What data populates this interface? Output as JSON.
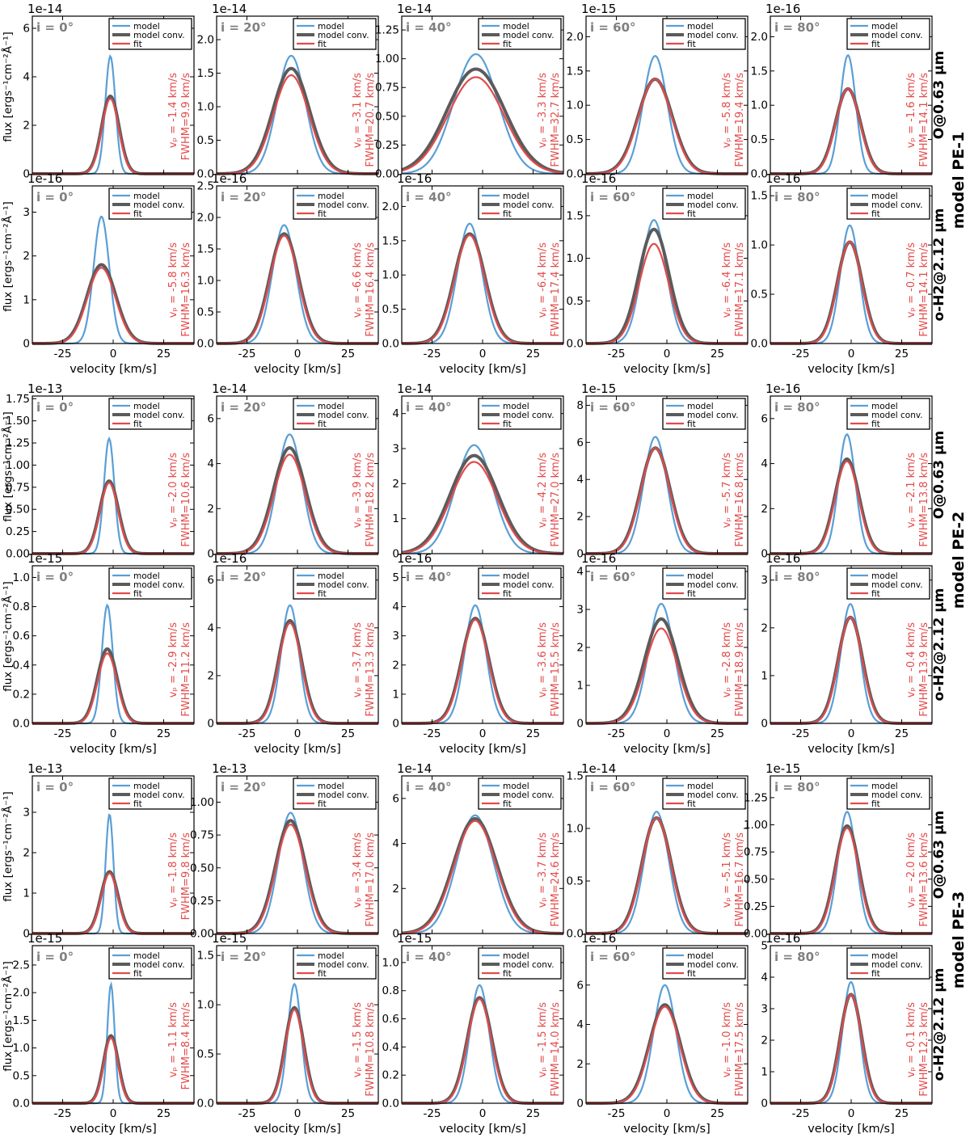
{
  "figure": {
    "x_label": "velocity [km/s]",
    "y_label": "flux [ergs⁻¹cm⁻²Å⁻¹]",
    "legend": [
      "model",
      "model conv.",
      "fit"
    ],
    "colors": {
      "model": "#5a9fd6",
      "model_conv": "#5b5b5b",
      "fit": "#e34a4a",
      "inclination": "#808080"
    }
  },
  "line_labels": [
    "O@0.63 μm",
    "o-H2@2.12 μm"
  ],
  "model_labels": [
    "model PE-1",
    "model PE-2",
    "model PE-3"
  ],
  "inclinations": [
    "i = 0°",
    "i = 20°",
    "i = 40°",
    "i = 60°",
    "i = 80°"
  ],
  "chart_data": [
    {
      "type": "line",
      "model": "model PE-1",
      "line": "O@0.63 μm",
      "inclination": 0,
      "exponent": "1e-14",
      "ylim": [
        0,
        6.5
      ],
      "yticks": [
        0,
        2,
        4,
        6
      ],
      "ytick_decimals": 0,
      "xlim": [
        -40,
        40
      ],
      "xticks": [
        -25,
        0,
        25
      ],
      "vp": -1.4,
      "fwhm": 9.9,
      "peak_model": 4.85,
      "peak_conv": 3.2,
      "peak_fit": 3.1,
      "vp_label": "vₚ = -1.4 km/s",
      "fwhm_label": "FWHM=9.9 km/s"
    },
    {
      "type": "line",
      "model": "model PE-1",
      "line": "O@0.63 μm",
      "inclination": 20,
      "exponent": "1e-14",
      "ylim": [
        0,
        2.35
      ],
      "yticks": [
        0,
        0.5,
        1.0,
        1.5,
        2.0
      ],
      "ytick_decimals": 1,
      "xlim": [
        -40,
        40
      ],
      "xticks": [
        -25,
        0,
        25
      ],
      "vp": -3.1,
      "fwhm": 20.7,
      "peak_model": 1.76,
      "peak_conv": 1.57,
      "peak_fit": 1.47,
      "vp_label": "vₚ = -3.1 km/s",
      "fwhm_label": "FWHM=20.7 km/s"
    },
    {
      "type": "line",
      "model": "model PE-1",
      "line": "O@0.63 μm",
      "inclination": 40,
      "exponent": "1e-14",
      "ylim": [
        0,
        1.37
      ],
      "yticks": [
        0,
        0.25,
        0.5,
        0.75,
        1.0,
        1.25
      ],
      "ytick_decimals": 2,
      "xlim": [
        -40,
        40
      ],
      "xticks": [
        -25,
        0,
        25
      ],
      "vp": -3.3,
      "fwhm": 32.7,
      "peak_model": 1.04,
      "peak_conv": 0.91,
      "peak_fit": 0.84,
      "vp_label": "vₚ = -3.3 km/s",
      "fwhm_label": "FWHM=32.7 km/s"
    },
    {
      "type": "line",
      "model": "model PE-1",
      "line": "O@0.63 μm",
      "inclination": 60,
      "exponent": "1e-15",
      "ylim": [
        0,
        2.3
      ],
      "yticks": [
        0,
        0.5,
        1.0,
        1.5,
        2.0
      ],
      "ytick_decimals": 1,
      "xlim": [
        -40,
        40
      ],
      "xticks": [
        -25,
        0,
        25
      ],
      "vp": -5.8,
      "fwhm": 19.4,
      "peak_model": 1.72,
      "peak_conv": 1.38,
      "peak_fit": 1.38,
      "vp_label": "vₚ = -5.8 km/s",
      "fwhm_label": "FWHM=19.4 km/s"
    },
    {
      "type": "line",
      "model": "model PE-1",
      "line": "O@0.63 μm",
      "inclination": 80,
      "exponent": "1e-16",
      "ylim": [
        0,
        2.3
      ],
      "yticks": [
        0,
        0.5,
        1.0,
        1.5,
        2.0
      ],
      "ytick_decimals": 1,
      "xlim": [
        -40,
        40
      ],
      "xticks": [
        -25,
        0,
        25
      ],
      "vp": -1.6,
      "fwhm": 14.1,
      "peak_model": 1.73,
      "peak_conv": 1.24,
      "peak_fit": 1.24,
      "vp_label": "vₚ = -1.6 km/s",
      "fwhm_label": "FWHM=14.1 km/s"
    },
    {
      "type": "line",
      "model": "model PE-1",
      "line": "o-H2@2.12 μm",
      "inclination": 0,
      "exponent": "1e-16",
      "ylim": [
        0,
        3.6
      ],
      "yticks": [
        0,
        1,
        2,
        3
      ],
      "ytick_decimals": 0,
      "xlim": [
        -40,
        40
      ],
      "xticks": [
        -25,
        0,
        25
      ],
      "vp": -5.8,
      "fwhm": 16.3,
      "peak_model": 2.9,
      "peak_conv": 1.8,
      "peak_fit": 1.73,
      "vp_label": "vₚ = -5.8 km/s",
      "fwhm_label": "FWHM=16.3 km/s"
    },
    {
      "type": "line",
      "model": "model PE-1",
      "line": "o-H2@2.12 μm",
      "inclination": 20,
      "exponent": "1e-16",
      "ylim": [
        0,
        2.5
      ],
      "yticks": [
        0,
        0.5,
        1.0,
        1.5,
        2.0,
        2.5
      ],
      "ytick_decimals": 1,
      "xlim": [
        -40,
        40
      ],
      "xticks": [
        -25,
        0,
        25
      ],
      "vp": -6.6,
      "fwhm": 16.4,
      "peak_model": 1.88,
      "peak_conv": 1.74,
      "peak_fit": 1.71,
      "vp_label": "vₚ = -6.6 km/s",
      "fwhm_label": "FWHM=16.4 km/s"
    },
    {
      "type": "line",
      "model": "model PE-1",
      "line": "o-H2@2.12 μm",
      "inclination": 40,
      "exponent": "1e-16",
      "ylim": [
        0,
        2.3
      ],
      "yticks": [
        0,
        0.5,
        1.0,
        1.5,
        2.0
      ],
      "ytick_decimals": 1,
      "xlim": [
        -40,
        40
      ],
      "xticks": [
        -25,
        0,
        25
      ],
      "vp": -6.4,
      "fwhm": 17.4,
      "peak_model": 1.75,
      "peak_conv": 1.6,
      "peak_fit": 1.58,
      "vp_label": "vₚ = -6.4 km/s",
      "fwhm_label": "FWHM=17.4 km/s"
    },
    {
      "type": "line",
      "model": "model PE-1",
      "line": "o-H2@2.12 μm",
      "inclination": 60,
      "exponent": "1e-16",
      "ylim": [
        0,
        1.85
      ],
      "yticks": [
        0,
        0.5,
        1.0,
        1.5
      ],
      "ytick_decimals": 1,
      "xlim": [
        -40,
        40
      ],
      "xticks": [
        -25,
        0,
        25
      ],
      "vp": -6.4,
      "fwhm": 17.1,
      "peak_model": 1.45,
      "peak_conv": 1.34,
      "peak_fit": 1.17,
      "vp_label": "vₚ = -6.4 km/s",
      "fwhm_label": "FWHM=17.1 km/s"
    },
    {
      "type": "line",
      "model": "model PE-1",
      "line": "o-H2@2.12 μm",
      "inclination": 80,
      "exponent": "1e-16",
      "ylim": [
        0,
        1.6
      ],
      "yticks": [
        0,
        0.5,
        1.0,
        1.5
      ],
      "ytick_decimals": 1,
      "xlim": [
        -40,
        40
      ],
      "xticks": [
        -25,
        0,
        25
      ],
      "vp": -0.7,
      "fwhm": 14.1,
      "peak_model": 1.2,
      "peak_conv": 1.03,
      "peak_fit": 1.03,
      "vp_label": "vₚ = -0.7 km/s",
      "fwhm_label": "FWHM=14.1 km/s"
    },
    {
      "type": "line",
      "model": "model PE-2",
      "line": "O@0.63 μm",
      "inclination": 0,
      "exponent": "1e-13",
      "ylim": [
        0,
        1.78
      ],
      "yticks": [
        0,
        0.25,
        0.5,
        0.75,
        1.0,
        1.25,
        1.5,
        1.75
      ],
      "ytick_decimals": 2,
      "xlim": [
        -40,
        40
      ],
      "xticks": [
        -25,
        0,
        25
      ],
      "vp": -2.0,
      "fwhm": 10.6,
      "peak_model": 1.3,
      "peak_conv": 0.82,
      "peak_fit": 0.8,
      "vp_label": "vₚ = -2.0 km/s",
      "fwhm_label": "FWHM=10.6 km/s"
    },
    {
      "type": "line",
      "model": "model PE-2",
      "line": "O@0.63 μm",
      "inclination": 20,
      "exponent": "1e-14",
      "ylim": [
        0,
        7.0
      ],
      "yticks": [
        0,
        2,
        4,
        6
      ],
      "ytick_decimals": 0,
      "xlim": [
        -40,
        40
      ],
      "xticks": [
        -25,
        0,
        25
      ],
      "vp": -3.9,
      "fwhm": 18.2,
      "peak_model": 5.3,
      "peak_conv": 4.7,
      "peak_fit": 4.4,
      "vp_label": "vₚ = -3.9 km/s",
      "fwhm_label": "FWHM=18.2 km/s"
    },
    {
      "type": "line",
      "model": "model PE-2",
      "line": "O@0.63 μm",
      "inclination": 40,
      "exponent": "1e-14",
      "ylim": [
        0,
        4.5
      ],
      "yticks": [
        0,
        1,
        2,
        3,
        4
      ],
      "ytick_decimals": 0,
      "xlim": [
        -40,
        40
      ],
      "xticks": [
        -25,
        0,
        25
      ],
      "vp": -4.2,
      "fwhm": 27.0,
      "peak_model": 3.1,
      "peak_conv": 2.8,
      "peak_fit": 2.62,
      "vp_label": "vₚ = -4.2 km/s",
      "fwhm_label": "FWHM=27.0 km/s"
    },
    {
      "type": "line",
      "model": "model PE-2",
      "line": "O@0.63 μm",
      "inclination": 60,
      "exponent": "1e-15",
      "ylim": [
        0,
        8.5
      ],
      "yticks": [
        0,
        2,
        4,
        6,
        8
      ],
      "ytick_decimals": 0,
      "xlim": [
        -40,
        40
      ],
      "xticks": [
        -25,
        0,
        25
      ],
      "vp": -5.7,
      "fwhm": 16.8,
      "peak_model": 6.3,
      "peak_conv": 5.7,
      "peak_fit": 5.7,
      "vp_label": "vₚ = -5.7 km/s",
      "fwhm_label": "FWHM=16.8 km/s"
    },
    {
      "type": "line",
      "model": "model PE-2",
      "line": "O@0.63 μm",
      "inclination": 80,
      "exponent": "1e-16",
      "ylim": [
        0,
        7.0
      ],
      "yticks": [
        0,
        2,
        4,
        6
      ],
      "ytick_decimals": 0,
      "xlim": [
        -40,
        40
      ],
      "xticks": [
        -25,
        0,
        25
      ],
      "vp": -2.1,
      "fwhm": 13.8,
      "peak_model": 5.3,
      "peak_conv": 4.2,
      "peak_fit": 4.1,
      "vp_label": "vₚ = -2.1 km/s",
      "fwhm_label": "FWHM=13.8 km/s"
    },
    {
      "type": "line",
      "model": "model PE-2",
      "line": "o-H2@2.12 μm",
      "inclination": 0,
      "exponent": "1e-15",
      "ylim": [
        0,
        1.08
      ],
      "yticks": [
        0,
        0.2,
        0.4,
        0.6,
        0.8,
        1.0
      ],
      "ytick_decimals": 1,
      "xlim": [
        -40,
        40
      ],
      "xticks": [
        -25,
        0,
        25
      ],
      "vp": -2.9,
      "fwhm": 11.2,
      "peak_model": 0.81,
      "peak_conv": 0.51,
      "peak_fit": 0.48,
      "vp_label": "vₚ = -2.9 km/s",
      "fwhm_label": "FWHM=11.2 km/s"
    },
    {
      "type": "line",
      "model": "model PE-2",
      "line": "o-H2@2.12 μm",
      "inclination": 20,
      "exponent": "1e-16",
      "ylim": [
        0,
        6.6
      ],
      "yticks": [
        0,
        2,
        4,
        6
      ],
      "ytick_decimals": 0,
      "xlim": [
        -40,
        40
      ],
      "xticks": [
        -25,
        0,
        25
      ],
      "vp": -3.7,
      "fwhm": 13.3,
      "peak_model": 4.95,
      "peak_conv": 4.3,
      "peak_fit": 4.2,
      "vp_label": "vₚ = -3.7 km/s",
      "fwhm_label": "FWHM=13.3 km/s"
    },
    {
      "type": "line",
      "model": "model PE-2",
      "line": "o-H2@2.12 μm",
      "inclination": 40,
      "exponent": "1e-16",
      "ylim": [
        0,
        5.4
      ],
      "yticks": [
        0,
        1,
        2,
        3,
        4,
        5
      ],
      "ytick_decimals": 0,
      "xlim": [
        -40,
        40
      ],
      "xticks": [
        -25,
        0,
        25
      ],
      "vp": -3.6,
      "fwhm": 15.5,
      "peak_model": 4.05,
      "peak_conv": 3.6,
      "peak_fit": 3.55,
      "vp_label": "vₚ = -3.6 km/s",
      "fwhm_label": "FWHM=15.5 km/s"
    },
    {
      "type": "line",
      "model": "model PE-2",
      "line": "o-H2@2.12 μm",
      "inclination": 60,
      "exponent": "1e-16",
      "ylim": [
        0,
        4.15
      ],
      "yticks": [
        0,
        1,
        2,
        3,
        4
      ],
      "ytick_decimals": 0,
      "xlim": [
        -40,
        40
      ],
      "xticks": [
        -25,
        0,
        25
      ],
      "vp": -2.8,
      "fwhm": 18.9,
      "peak_model": 3.15,
      "peak_conv": 2.75,
      "peak_fit": 2.5,
      "vp_label": "vₚ = -2.8 km/s",
      "fwhm_label": "FWHM=18.9 km/s"
    },
    {
      "type": "line",
      "model": "model PE-2",
      "line": "o-H2@2.12 μm",
      "inclination": 80,
      "exponent": "1e-16",
      "ylim": [
        0,
        3.3
      ],
      "yticks": [
        0,
        1,
        2,
        3
      ],
      "ytick_decimals": 0,
      "xlim": [
        -40,
        40
      ],
      "xticks": [
        -25,
        0,
        25
      ],
      "vp": -0.4,
      "fwhm": 13.9,
      "peak_model": 2.5,
      "peak_conv": 2.22,
      "peak_fit": 2.22,
      "vp_label": "vₚ = -0.4 km/s",
      "fwhm_label": "FWHM=13.9 km/s"
    },
    {
      "type": "line",
      "model": "model PE-3",
      "line": "O@0.63 μm",
      "inclination": 0,
      "exponent": "1e-13",
      "ylim": [
        0,
        3.9
      ],
      "yticks": [
        0,
        1,
        2,
        3
      ],
      "ytick_decimals": 0,
      "xlim": [
        -40,
        40
      ],
      "xticks": [
        -25,
        0,
        25
      ],
      "vp": -1.8,
      "fwhm": 9.8,
      "peak_model": 2.95,
      "peak_conv": 1.53,
      "peak_fit": 1.49,
      "vp_label": "vₚ = -1.8 km/s",
      "fwhm_label": "FWHM=9.8 km/s"
    },
    {
      "type": "line",
      "model": "model PE-3",
      "line": "O@0.63 μm",
      "inclination": 20,
      "exponent": "1e-13",
      "ylim": [
        0,
        1.2
      ],
      "yticks": [
        0,
        0.25,
        0.5,
        0.75,
        1.0
      ],
      "ytick_decimals": 2,
      "xlim": [
        -40,
        40
      ],
      "xticks": [
        -25,
        0,
        25
      ],
      "vp": -3.4,
      "fwhm": 17.0,
      "peak_model": 0.92,
      "peak_conv": 0.86,
      "peak_fit": 0.83,
      "vp_label": "vₚ = -3.4 km/s",
      "fwhm_label": "FWHM=17.0 km/s"
    },
    {
      "type": "line",
      "model": "model PE-3",
      "line": "O@0.63 μm",
      "inclination": 40,
      "exponent": "1e-14",
      "ylim": [
        0,
        7.0
      ],
      "yticks": [
        0,
        2,
        4,
        6
      ],
      "ytick_decimals": 0,
      "xlim": [
        -40,
        40
      ],
      "xticks": [
        -25,
        0,
        25
      ],
      "vp": -3.7,
      "fwhm": 24.6,
      "peak_model": 5.25,
      "peak_conv": 5.1,
      "peak_fit": 5.0,
      "vp_label": "vₚ = -3.7 km/s",
      "fwhm_label": "FWHM=24.6 km/s"
    },
    {
      "type": "line",
      "model": "model PE-3",
      "line": "O@0.63 μm",
      "inclination": 60,
      "exponent": "1e-14",
      "ylim": [
        0,
        1.5
      ],
      "yticks": [
        0,
        0.5,
        1.0,
        1.5
      ],
      "ytick_decimals": 1,
      "xlim": [
        -40,
        40
      ],
      "xticks": [
        -25,
        0,
        25
      ],
      "vp": -5.1,
      "fwhm": 16.7,
      "peak_model": 1.16,
      "peak_conv": 1.1,
      "peak_fit": 1.1,
      "vp_label": "vₚ = -5.1 km/s",
      "fwhm_label": "FWHM=16.7 km/s"
    },
    {
      "type": "line",
      "model": "model PE-3",
      "line": "O@0.63 μm",
      "inclination": 80,
      "exponent": "1e-15",
      "ylim": [
        0,
        1.45
      ],
      "yticks": [
        0,
        0.25,
        0.5,
        0.75,
        1.0,
        1.25
      ],
      "ytick_decimals": 2,
      "xlim": [
        -40,
        40
      ],
      "xticks": [
        -25,
        0,
        25
      ],
      "vp": -2.0,
      "fwhm": 13.6,
      "peak_model": 1.12,
      "peak_conv": 0.99,
      "peak_fit": 0.97,
      "vp_label": "vₚ = -2.0 km/s",
      "fwhm_label": "FWHM=13.6 km/s"
    },
    {
      "type": "line",
      "model": "model PE-3",
      "line": "o-H2@2.12 μm",
      "inclination": 0,
      "exponent": "1e-15",
      "ylim": [
        0,
        2.85
      ],
      "yticks": [
        0,
        0.5,
        1.0,
        1.5,
        2.0,
        2.5
      ],
      "ytick_decimals": 1,
      "xlim": [
        -40,
        40
      ],
      "xticks": [
        -25,
        0,
        25
      ],
      "vp": -1.1,
      "fwhm": 8.4,
      "peak_model": 2.15,
      "peak_conv": 1.22,
      "peak_fit": 1.18,
      "vp_label": "vₚ = -1.1 km/s",
      "fwhm_label": "FWHM=8.4 km/s"
    },
    {
      "type": "line",
      "model": "model PE-3",
      "line": "o-H2@2.12 μm",
      "inclination": 20,
      "exponent": "1e-15",
      "ylim": [
        0,
        1.6
      ],
      "yticks": [
        0,
        0.5,
        1.0,
        1.5
      ],
      "ytick_decimals": 1,
      "xlim": [
        -40,
        40
      ],
      "xticks": [
        -25,
        0,
        25
      ],
      "vp": -1.5,
      "fwhm": 10.8,
      "peak_model": 1.21,
      "peak_conv": 0.97,
      "peak_fit": 0.95,
      "vp_label": "vₚ = -1.5 km/s",
      "fwhm_label": "FWHM=10.8 km/s"
    },
    {
      "type": "line",
      "model": "model PE-3",
      "line": "o-H2@2.12 μm",
      "inclination": 40,
      "exponent": "1e-15",
      "ylim": [
        0,
        1.12
      ],
      "yticks": [
        0,
        0.2,
        0.4,
        0.6,
        0.8,
        1.0
      ],
      "ytick_decimals": 1,
      "xlim": [
        -40,
        40
      ],
      "xticks": [
        -25,
        0,
        25
      ],
      "vp": -1.5,
      "fwhm": 14.0,
      "peak_model": 0.84,
      "peak_conv": 0.75,
      "peak_fit": 0.74,
      "vp_label": "vₚ = -1.5 km/s",
      "fwhm_label": "FWHM=14.0 km/s"
    },
    {
      "type": "line",
      "model": "model PE-3",
      "line": "o-H2@2.12 μm",
      "inclination": 60,
      "exponent": "1e-16",
      "ylim": [
        0,
        8.0
      ],
      "yticks": [
        0,
        2,
        4,
        6
      ],
      "ytick_decimals": 0,
      "xlim": [
        -40,
        40
      ],
      "xticks": [
        -25,
        0,
        25
      ],
      "vp": -1.0,
      "fwhm": 17.5,
      "peak_model": 6.0,
      "peak_conv": 5.0,
      "peak_fit": 4.9,
      "vp_label": "vₚ = -1.0 km/s",
      "fwhm_label": "FWHM=17.5 km/s"
    },
    {
      "type": "line",
      "model": "model PE-3",
      "line": "o-H2@2.12 μm",
      "inclination": 80,
      "exponent": "1e-16",
      "ylim": [
        0,
        5.0
      ],
      "yticks": [
        0,
        1,
        2,
        3,
        4,
        5
      ],
      "ytick_decimals": 0,
      "xlim": [
        -40,
        40
      ],
      "xticks": [
        -25,
        0,
        25
      ],
      "vp": -0.1,
      "fwhm": 12.3,
      "peak_model": 3.85,
      "peak_conv": 3.45,
      "peak_fit": 3.45,
      "vp_label": "vₚ = -0.1 km/s",
      "fwhm_label": "FWHM=12.3 km/s"
    }
  ]
}
